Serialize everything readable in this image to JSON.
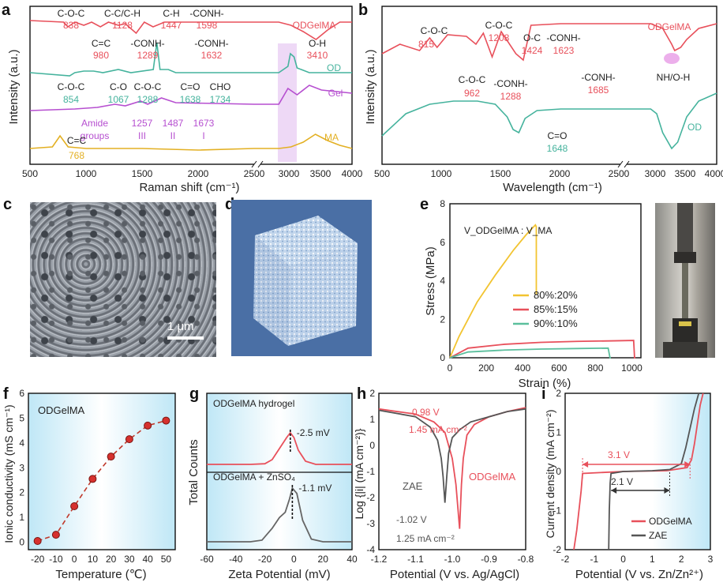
{
  "panels": {
    "a": "a",
    "b": "b",
    "c": "c",
    "d": "d",
    "e": "e",
    "f": "f",
    "g": "g",
    "h": "h",
    "i": "i"
  },
  "colors": {
    "red": "#e8505b",
    "teal": "#45b39d",
    "purple": "#b64fd0",
    "gold": "#e3b023",
    "black": "#111111",
    "grey": "#555555",
    "yellow": "#f2c431",
    "pink": "#e8505b",
    "green": "#5bbf9d",
    "cube": "#4a6fa5",
    "highlight": "#e7c9f2"
  },
  "c": {
    "scale": "1 μm"
  },
  "chart_data": [
    {
      "id": "a",
      "type": "line",
      "xlabel": "Raman shift (cm⁻¹)",
      "ylabel": "Intensity (a.u.)",
      "xticks_left": [
        "500",
        "1000",
        "1500",
        "2000",
        "2500"
      ],
      "xticks_right": [
        "3000",
        "3500",
        "4000"
      ],
      "series": [
        {
          "name": "ODGelMA",
          "color": "#e8505b",
          "x": [
            500,
            800,
            838,
            900,
            980,
            1050,
            1128,
            1200,
            1289,
            1350,
            1447,
            1520,
            1598,
            1700,
            2000,
            2500,
            2800,
            3000,
            3200,
            3410,
            3600,
            3800,
            4000
          ],
          "y": [
            0.91,
            0.9,
            0.87,
            0.9,
            0.88,
            0.9,
            0.87,
            0.9,
            0.88,
            0.89,
            0.83,
            0.9,
            0.87,
            0.9,
            0.9,
            0.9,
            0.9,
            0.88,
            0.84,
            0.79,
            0.85,
            0.9,
            0.9
          ]
        },
        {
          "name": "OD",
          "color": "#45b39d",
          "x": [
            500,
            854,
            900,
            980,
            1067,
            1150,
            1288,
            1400,
            1600,
            1632,
            1660,
            1734,
            1800,
            2500,
            2800,
            2950,
            2990,
            3050,
            3100,
            3300,
            4000
          ],
          "y": [
            0.58,
            0.56,
            0.58,
            0.59,
            0.59,
            0.58,
            0.6,
            0.58,
            0.6,
            0.77,
            0.6,
            0.6,
            0.58,
            0.58,
            0.58,
            0.62,
            0.7,
            0.68,
            0.61,
            0.58,
            0.58
          ]
        },
        {
          "name": "Gel",
          "color": "#b64fd0",
          "x": [
            500,
            900,
            1100,
            1257,
            1350,
            1487,
            1550,
            1673,
            1800,
            2500,
            2800,
            2950,
            3100,
            3300,
            3500,
            4000
          ],
          "y": [
            0.34,
            0.35,
            0.36,
            0.38,
            0.37,
            0.4,
            0.38,
            0.42,
            0.39,
            0.38,
            0.38,
            0.48,
            0.44,
            0.5,
            0.47,
            0.45
          ]
        },
        {
          "name": "MA",
          "color": "#e3b023",
          "x": [
            500,
            700,
            768,
            840,
            1000,
            1500,
            2000,
            2500,
            2800,
            3000,
            3200,
            3400,
            3600,
            3800,
            4000
          ],
          "y": [
            0.1,
            0.11,
            0.18,
            0.11,
            0.1,
            0.1,
            0.09,
            0.1,
            0.1,
            0.11,
            0.14,
            0.19,
            0.15,
            0.12,
            0.1
          ]
        }
      ],
      "annotations": [
        {
          "text": "C-O-C",
          "sub": "838",
          "color": "#e8505b"
        },
        {
          "text": "C-C/C-H",
          "sub": "1128",
          "color": "#e8505b"
        },
        {
          "text": "C-H",
          "sub": "1447",
          "color": "#e8505b"
        },
        {
          "text": "-CONH-",
          "sub": "1598",
          "color": "#e8505b"
        },
        {
          "text": "C=C",
          "sub": "980",
          "color": "#e8505b"
        },
        {
          "text": "-CONH-",
          "sub": "1289",
          "color": "#e8505b"
        },
        {
          "text": "-CONH-",
          "sub": "1632",
          "color": "#e8505b"
        },
        {
          "text": "O-H",
          "sub": "3410",
          "color": "#e8505b"
        },
        {
          "text": "C-O-C",
          "sub": "854",
          "color": "#45b39d"
        },
        {
          "text": "C-O",
          "sub": "1067",
          "color": "#45b39d"
        },
        {
          "text": "C-O-C",
          "sub": "1288",
          "color": "#45b39d"
        },
        {
          "text": "C=O",
          "sub": "1638",
          "color": "#45b39d"
        },
        {
          "text": "CHO",
          "sub": "1734",
          "color": "#45b39d"
        },
        {
          "text": "Amide",
          "sub": "groups",
          "color": "#b64fd0"
        },
        {
          "text": "1257",
          "sub": "III",
          "color": "#b64fd0"
        },
        {
          "text": "1487",
          "sub": "II",
          "color": "#b64fd0"
        },
        {
          "text": "1673",
          "sub": "I",
          "color": "#b64fd0"
        },
        {
          "text": "C=C",
          "sub": "768",
          "color": "#e3b023"
        }
      ]
    },
    {
      "id": "b",
      "type": "line",
      "xlabel": "Wavelength (cm⁻¹)",
      "ylabel": "Intensity (a.u.)",
      "xticks_left": [
        "500",
        "1000",
        "1500",
        "2000",
        "2500"
      ],
      "xticks_right": [
        "3000",
        "3500",
        "4000"
      ],
      "series": [
        {
          "name": "ODGelMA",
          "color": "#e8505b",
          "x": [
            500,
            650,
            815,
            900,
            962,
            1050,
            1208,
            1288,
            1350,
            1424,
            1500,
            1623,
            1685,
            1750,
            2000,
            2500,
            2900,
            3100,
            3250,
            3300,
            3400,
            3500,
            3700,
            4000
          ],
          "y": [
            0.7,
            0.76,
            0.72,
            0.8,
            0.74,
            0.82,
            0.81,
            0.76,
            0.83,
            0.68,
            0.84,
            0.7,
            0.66,
            0.88,
            0.89,
            0.89,
            0.89,
            0.86,
            0.76,
            0.72,
            0.74,
            0.79,
            0.86,
            0.89
          ]
        },
        {
          "name": "OD",
          "color": "#45b39d",
          "x": [
            500,
            700,
            900,
            1100,
            1300,
            1450,
            1550,
            1600,
            1648,
            1700,
            1800,
            2000,
            2500,
            2900,
            3000,
            3100,
            3250,
            3350,
            3500,
            3700,
            4000
          ],
          "y": [
            0.18,
            0.32,
            0.38,
            0.4,
            0.4,
            0.38,
            0.3,
            0.22,
            0.2,
            0.29,
            0.34,
            0.35,
            0.35,
            0.35,
            0.32,
            0.2,
            0.1,
            0.14,
            0.3,
            0.4,
            0.45
          ]
        }
      ],
      "annotations": [
        {
          "text": "C-O-C",
          "sub": "815"
        },
        {
          "text": "C-O-C",
          "sub": "962"
        },
        {
          "text": "C-O-C",
          "sub": "1208"
        },
        {
          "text": "-CONH-",
          "sub": "1288"
        },
        {
          "text": "O-C",
          "sub": "1424"
        },
        {
          "text": "-CONH-",
          "sub": "1623"
        },
        {
          "text": "-CONH-",
          "sub": "1685"
        },
        {
          "text": "NH/O-H",
          "sub": ""
        },
        {
          "text": "C=O",
          "sub": "1648"
        }
      ]
    },
    {
      "id": "e",
      "type": "line",
      "xlabel": "Strain (%)",
      "ylabel": "Stress (MPa)",
      "xlim": [
        0,
        1050
      ],
      "ylim": [
        0,
        8
      ],
      "xticks": [
        "0",
        "200",
        "400",
        "600",
        "800",
        "1000"
      ],
      "yticks": [
        "0",
        "2",
        "4",
        "6",
        "8"
      ],
      "legend_title": "V_ODGelMA : V_MA",
      "series": [
        {
          "name": "80%:20%",
          "color": "#f2c431",
          "x": [
            0,
            50,
            150,
            250,
            350,
            420,
            460,
            470,
            475,
            475
          ],
          "y": [
            0,
            1.1,
            2.9,
            4.3,
            5.6,
            6.4,
            6.8,
            6.9,
            6.8,
            3.3
          ]
        },
        {
          "name": "85%:15%",
          "color": "#e8505b",
          "x": [
            0,
            100,
            300,
            500,
            700,
            900,
            1010,
            1015,
            1020
          ],
          "y": [
            0,
            0.5,
            0.7,
            0.8,
            0.85,
            0.88,
            0.9,
            0.0,
            0.0
          ]
        },
        {
          "name": "90%:10%",
          "color": "#5bbf9d",
          "x": [
            0,
            100,
            300,
            500,
            700,
            870,
            880,
            885
          ],
          "y": [
            0,
            0.3,
            0.4,
            0.45,
            0.48,
            0.5,
            0.0,
            0.0
          ]
        }
      ]
    },
    {
      "id": "f",
      "type": "scatter",
      "legend": "ODGelMA",
      "xlabel": "Temperature (℃)",
      "ylabel": "Ionic conductivity (mS cm⁻¹)",
      "xlim": [
        -25,
        55
      ],
      "ylim": [
        -0.3,
        6
      ],
      "xticks": [
        "-20",
        "-10",
        "0",
        "10",
        "20",
        "30",
        "40",
        "50"
      ],
      "yticks": [
        "0",
        "1",
        "2",
        "3",
        "4",
        "5",
        "6"
      ],
      "x": [
        -20,
        -10,
        0,
        10,
        20,
        30,
        40,
        50
      ],
      "y": [
        0.05,
        0.3,
        1.45,
        2.55,
        3.45,
        4.15,
        4.7,
        4.9
      ]
    },
    {
      "id": "g",
      "type": "line",
      "xlabel": "Zeta Potential (mV)",
      "ylabel": "Total Counts",
      "xlim": [
        -60,
        40
      ],
      "xticks": [
        "-60",
        "-40",
        "-20",
        "0",
        "20",
        "40"
      ],
      "series": [
        {
          "name": "ODGelMA hydrogel",
          "color": "#e8505b",
          "peak_label": "-2.5 mV",
          "x": [
            -60,
            -30,
            -20,
            -15,
            -10,
            -5,
            -2.5,
            0,
            3,
            8,
            15,
            40
          ],
          "y": [
            0,
            0,
            0.02,
            0.15,
            0.5,
            0.85,
            1.0,
            0.85,
            0.45,
            0.1,
            0.0,
            0
          ]
        },
        {
          "name": "ODGelMA + ZnSO₄",
          "color": "#666666",
          "peak_label": "-1.1 mV",
          "x": [
            -60,
            -30,
            -22,
            -15,
            -10,
            -6,
            -3,
            -1.1,
            2,
            6,
            12,
            20,
            40
          ],
          "y": [
            0,
            0,
            0.03,
            0.25,
            0.45,
            0.55,
            0.8,
            1.0,
            0.9,
            0.4,
            0.05,
            0,
            0
          ]
        }
      ]
    },
    {
      "id": "h",
      "type": "line",
      "xlabel": "Potential (V vs. Ag/AgCl)",
      "ylabel": "Log {|i| (mA cm⁻²)}",
      "xlim": [
        -1.2,
        -0.8
      ],
      "ylim": [
        -4,
        2
      ],
      "xticks": [
        "-1.2",
        "-1.1",
        "-1.0",
        "-0.9",
        "-0.8"
      ],
      "yticks": [
        "-4",
        "-3",
        "-2",
        "-1",
        "0",
        "1",
        "2"
      ],
      "annotations_top": [
        "-0.98 V",
        "1.45 mA cm⁻²"
      ],
      "annotations_bottom": [
        "-1.02 V",
        "1.25 mA cm⁻²"
      ],
      "label_zae": "ZAE",
      "label_od": "ODGelMA",
      "series": [
        {
          "name": "ODGelMA",
          "color": "#e8505b",
          "x": [
            -1.2,
            -1.1,
            -1.05,
            -1.02,
            -1.0,
            -0.99,
            -0.98,
            -0.975,
            -0.97,
            -0.96,
            -0.94,
            -0.9,
            -0.85,
            -0.8
          ],
          "y": [
            1.4,
            1.2,
            0.9,
            0.5,
            -0.5,
            -1.5,
            -3.2,
            -1.5,
            -0.5,
            0.4,
            0.8,
            1.1,
            1.3,
            1.45
          ]
        },
        {
          "name": "ZAE",
          "color": "#555555",
          "x": [
            -1.2,
            -1.1,
            -1.06,
            -1.04,
            -1.03,
            -1.025,
            -1.02,
            -1.015,
            -1.01,
            -1.0,
            -0.98,
            -0.95,
            -0.9,
            -0.85,
            -0.8
          ],
          "y": [
            1.35,
            1.1,
            0.7,
            0.2,
            -0.5,
            -1.2,
            -2.2,
            -1.2,
            -0.3,
            0.3,
            0.6,
            0.9,
            1.1,
            1.3,
            1.4
          ]
        }
      ]
    },
    {
      "id": "i",
      "type": "line",
      "xlabel": "Potential (V vs. Zn/Zn²⁺)",
      "ylabel": "Current density (mA cm⁻²)",
      "xlim": [
        -2,
        3
      ],
      "ylim": [
        -2,
        2
      ],
      "xticks": [
        "-2",
        "-1",
        "0",
        "1",
        "2",
        "3"
      ],
      "yticks": [
        "-2",
        "-1",
        "0",
        "1",
        "2"
      ],
      "window_labels": [
        "3.1 V",
        "2.1 V"
      ],
      "series": [
        {
          "name": "ODGelMA",
          "color": "#e8505b",
          "x": [
            -1.7,
            -1.6,
            -1.45,
            -1.4,
            0,
            1.5,
            2.2,
            2.35,
            2.45,
            2.55,
            2.65,
            2.75
          ],
          "y": [
            -2,
            -1.5,
            -0.5,
            -0.05,
            0,
            0.02,
            0.1,
            0.3,
            0.7,
            1.2,
            1.7,
            2
          ]
        },
        {
          "name": "ZAE",
          "color": "#555555",
          "x": [
            -0.5,
            -0.48,
            -0.45,
            -0.42,
            0,
            1.0,
            1.6,
            2.0,
            2.15,
            2.3,
            2.45,
            2.6
          ],
          "y": [
            -2,
            -1.0,
            -0.3,
            -0.05,
            0,
            0.02,
            0.05,
            0.2,
            0.6,
            1.1,
            1.6,
            2
          ]
        }
      ]
    }
  ]
}
